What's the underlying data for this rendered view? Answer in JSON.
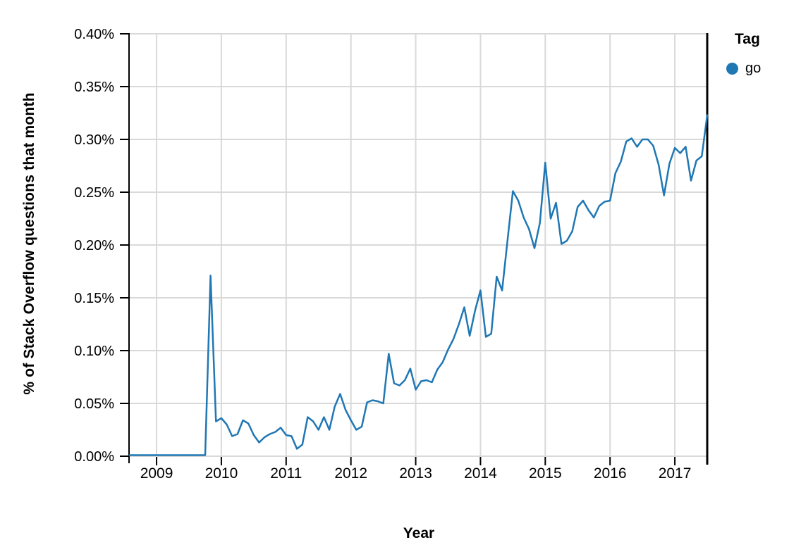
{
  "colors": {
    "series_go": "#1f77b4",
    "grid": "#d9d9d9",
    "axis": "#000000",
    "text": "#000000",
    "background": "#ffffff"
  },
  "chart_data": {
    "type": "line",
    "title": "",
    "xlabel": "Year",
    "ylabel": "% of Stack Overflow questions that month",
    "xlim": [
      2008.575,
      2017.5
    ],
    "ylim": [
      0,
      0.4
    ],
    "grid": true,
    "x_ticks": [
      {
        "value": 2009,
        "label": "2009"
      },
      {
        "value": 2010,
        "label": "2010"
      },
      {
        "value": 2011,
        "label": "2011"
      },
      {
        "value": 2012,
        "label": "2012"
      },
      {
        "value": 2013,
        "label": "2013"
      },
      {
        "value": 2014,
        "label": "2014"
      },
      {
        "value": 2015,
        "label": "2015"
      },
      {
        "value": 2016,
        "label": "2016"
      },
      {
        "value": 2017,
        "label": "2017"
      }
    ],
    "y_ticks": [
      {
        "value": 0.0,
        "label": "0.00%"
      },
      {
        "value": 0.05,
        "label": "0.05%"
      },
      {
        "value": 0.1,
        "label": "0.10%"
      },
      {
        "value": 0.15,
        "label": "0.15%"
      },
      {
        "value": 0.2,
        "label": "0.20%"
      },
      {
        "value": 0.25,
        "label": "0.25%"
      },
      {
        "value": 0.3,
        "label": "0.30%"
      },
      {
        "value": 0.35,
        "label": "0.35%"
      },
      {
        "value": 0.4,
        "label": "0.40%"
      }
    ],
    "legend": {
      "title": "Tag",
      "position": "top-right",
      "items": [
        {
          "label": "go",
          "color": "#1f77b4",
          "marker": "circle"
        }
      ]
    },
    "series": [
      {
        "name": "go",
        "color": "#1f77b4",
        "start_month": "2008-08",
        "frequency": "monthly",
        "unit": "% of Stack Overflow questions that month",
        "values": [
          0.001,
          0.001,
          0.001,
          0.001,
          0.001,
          0.001,
          0.001,
          0.001,
          0.001,
          0.001,
          0.001,
          0.001,
          0.001,
          0.001,
          0.001,
          0.171,
          0.033,
          0.036,
          0.03,
          0.019,
          0.021,
          0.034,
          0.031,
          0.02,
          0.013,
          0.018,
          0.021,
          0.023,
          0.027,
          0.02,
          0.019,
          0.007,
          0.011,
          0.037,
          0.033,
          0.025,
          0.037,
          0.025,
          0.047,
          0.059,
          0.044,
          0.034,
          0.025,
          0.028,
          0.051,
          0.053,
          0.052,
          0.05,
          0.097,
          0.069,
          0.067,
          0.072,
          0.083,
          0.063,
          0.071,
          0.072,
          0.07,
          0.082,
          0.089,
          0.101,
          0.111,
          0.125,
          0.141,
          0.114,
          0.138,
          0.157,
          0.113,
          0.116,
          0.17,
          0.157,
          0.204,
          0.251,
          0.242,
          0.226,
          0.215,
          0.197,
          0.221,
          0.278,
          0.225,
          0.24,
          0.201,
          0.204,
          0.213,
          0.236,
          0.242,
          0.233,
          0.226,
          0.237,
          0.241,
          0.242,
          0.268,
          0.279,
          0.298,
          0.301,
          0.293,
          0.3,
          0.3,
          0.294,
          0.276,
          0.247,
          0.277,
          0.292,
          0.287,
          0.293,
          0.261,
          0.28,
          0.284,
          0.323
        ]
      }
    ]
  }
}
